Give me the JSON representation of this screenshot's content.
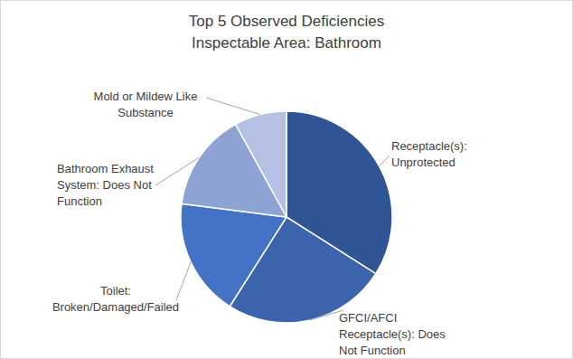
{
  "chart_data": {
    "type": "pie",
    "title": "Top 5 Observed Deficiencies",
    "subtitle": "Inspectable Area: Bathroom",
    "categories": [
      "Receptacle(s): Unprotected",
      "GFCI/AFCI Receptacle(s): Does Not Function",
      "Toilet: Broken/Damaged/Failed",
      "Bathroom Exhaust System: Does Not Function",
      "Mold or Mildew Like Substance"
    ],
    "values": [
      34,
      25,
      18,
      15,
      8
    ],
    "colors": [
      "#2f5597",
      "#3b64ad",
      "#4472c4",
      "#8fa2d4",
      "#b4c0e4"
    ]
  }
}
